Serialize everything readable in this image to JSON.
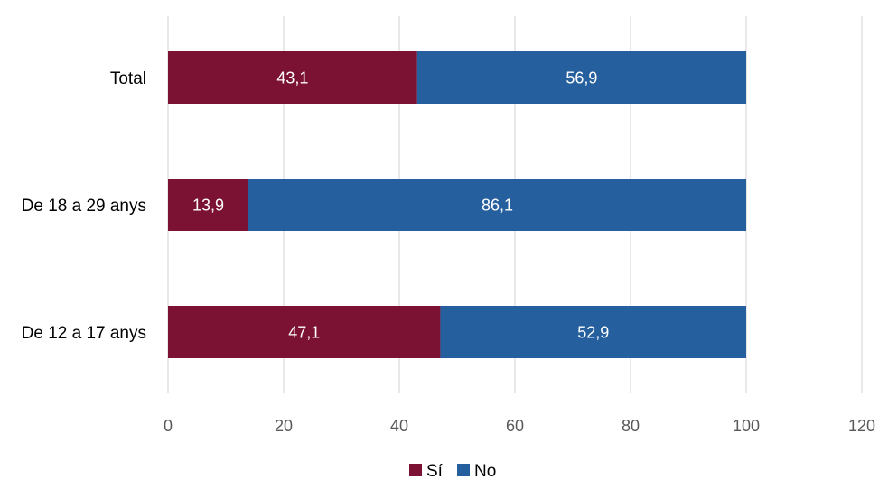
{
  "chart_data": {
    "type": "bar",
    "orientation": "horizontal",
    "stacked": true,
    "categories": [
      "Total",
      "De 18 a 29 anys",
      "De 12 a 17 anys"
    ],
    "series": [
      {
        "name": "Sí",
        "color": "#7b1133",
        "values": [
          43.1,
          13.9,
          47.1
        ],
        "labels": [
          "43,1",
          "13,9",
          "47,1"
        ]
      },
      {
        "name": "No",
        "color": "#265f9e",
        "values": [
          56.9,
          86.1,
          52.9
        ],
        "labels": [
          "56,9",
          "86,1",
          "52,9"
        ]
      }
    ],
    "xlim": [
      0,
      120
    ],
    "xticks": [
      0,
      20,
      40,
      60,
      80,
      100,
      120
    ],
    "xtick_labels": [
      "0",
      "20",
      "40",
      "60",
      "80",
      "100",
      "120"
    ],
    "grid": true,
    "legend_position": "bottom",
    "title": "",
    "xlabel": "",
    "ylabel": ""
  }
}
